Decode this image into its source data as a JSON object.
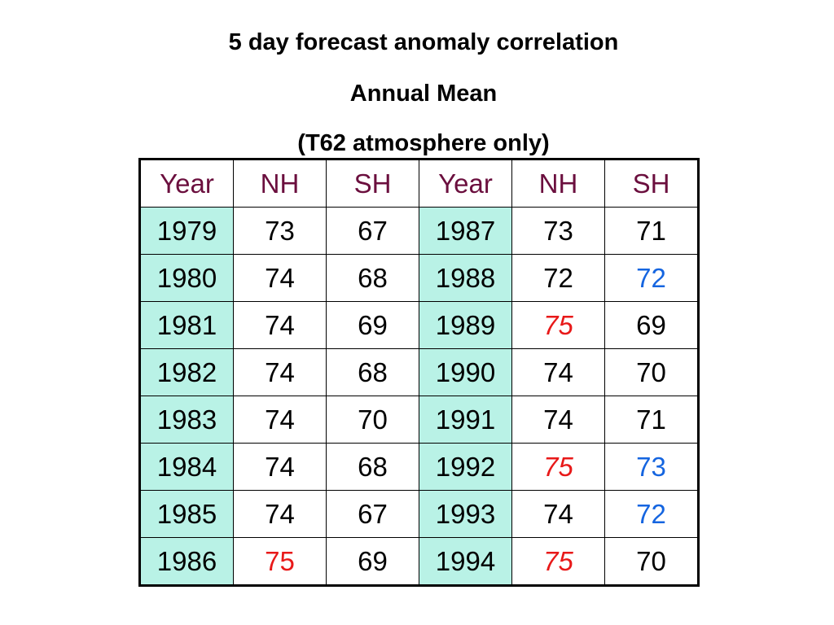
{
  "title": {
    "line1": "5 day forecast anomaly correlation",
    "line2": "Annual Mean",
    "line3": "(T62 atmosphere only)"
  },
  "colors": {
    "header_text": "#6b0f3e",
    "year_cell_bg": "#b9f2e6",
    "red_highlight": "#e81919",
    "blue_highlight": "#1565e0",
    "border": "#000000"
  },
  "table": {
    "headers": [
      "Year",
      "NH",
      "SH",
      "Year",
      "NH",
      "SH"
    ],
    "rows": [
      [
        {
          "v": "1979"
        },
        {
          "v": "73"
        },
        {
          "v": "67"
        },
        {
          "v": "1987"
        },
        {
          "v": "73"
        },
        {
          "v": "71"
        }
      ],
      [
        {
          "v": "1980"
        },
        {
          "v": "74"
        },
        {
          "v": "68"
        },
        {
          "v": "1988"
        },
        {
          "v": "72"
        },
        {
          "v": "72",
          "style": "blue"
        }
      ],
      [
        {
          "v": "1981"
        },
        {
          "v": "74"
        },
        {
          "v": "69"
        },
        {
          "v": "1989"
        },
        {
          "v": "75",
          "style": "red-italic"
        },
        {
          "v": "69"
        }
      ],
      [
        {
          "v": "1982"
        },
        {
          "v": "74"
        },
        {
          "v": "68"
        },
        {
          "v": "1990"
        },
        {
          "v": "74"
        },
        {
          "v": "70"
        }
      ],
      [
        {
          "v": "1983"
        },
        {
          "v": "74"
        },
        {
          "v": "70"
        },
        {
          "v": "1991"
        },
        {
          "v": "74"
        },
        {
          "v": "71"
        }
      ],
      [
        {
          "v": "1984"
        },
        {
          "v": "74"
        },
        {
          "v": "68"
        },
        {
          "v": "1992"
        },
        {
          "v": "75",
          "style": "red-italic"
        },
        {
          "v": "73",
          "style": "blue"
        }
      ],
      [
        {
          "v": "1985"
        },
        {
          "v": "74"
        },
        {
          "v": "67"
        },
        {
          "v": "1993"
        },
        {
          "v": "74"
        },
        {
          "v": "72",
          "style": "blue"
        }
      ],
      [
        {
          "v": "1986"
        },
        {
          "v": "75",
          "style": "red"
        },
        {
          "v": "69"
        },
        {
          "v": "1994"
        },
        {
          "v": "75",
          "style": "red-italic"
        },
        {
          "v": "70"
        }
      ]
    ]
  }
}
